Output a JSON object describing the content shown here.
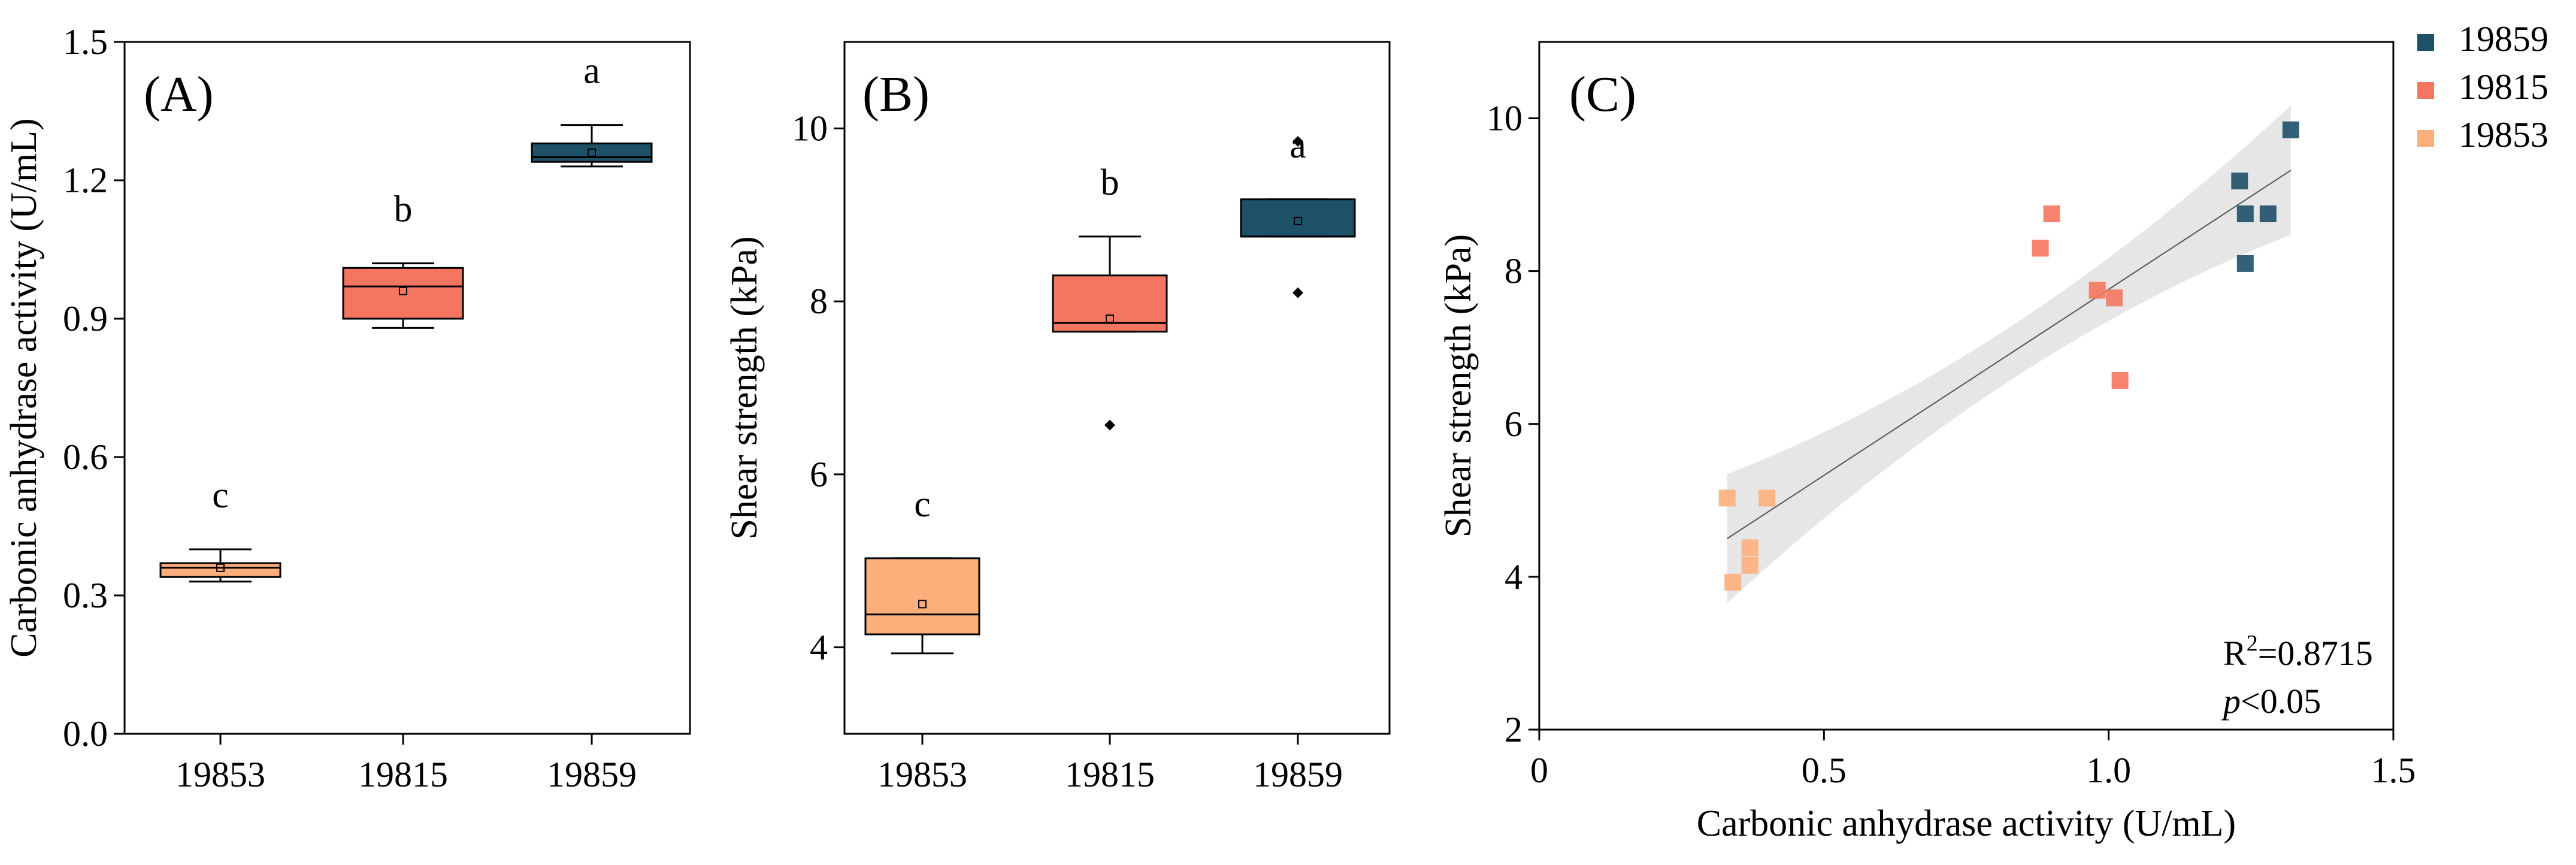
{
  "chart_data": [
    {
      "panel": "(A)",
      "type": "box",
      "ylabel": "Carbonic anhydrase activity (U/mL)",
      "xlabel": "",
      "ylim": [
        0.0,
        1.5
      ],
      "yticks": [
        "0.0",
        "0.3",
        "0.6",
        "0.9",
        "1.2",
        "1.5"
      ],
      "categories": [
        "19853",
        "19815",
        "19859"
      ],
      "colors": [
        "#FDAF7B",
        "#F47660",
        "#1E5068"
      ],
      "boxes": [
        {
          "whisker_low": 0.33,
          "q1": 0.34,
          "median": 0.36,
          "q3": 0.37,
          "whisker_high": 0.4,
          "mean": 0.36,
          "outliers": [],
          "label": "c"
        },
        {
          "whisker_low": 0.88,
          "q1": 0.9,
          "median": 0.97,
          "q3": 1.01,
          "whisker_high": 1.02,
          "mean": 0.96,
          "outliers": [],
          "label": "b"
        },
        {
          "whisker_low": 1.23,
          "q1": 1.24,
          "median": 1.25,
          "q3": 1.28,
          "whisker_high": 1.32,
          "mean": 1.26,
          "outliers": [],
          "label": "a"
        }
      ]
    },
    {
      "panel": "(B)",
      "type": "box",
      "ylabel": "Shear strength (kPa)",
      "xlabel": "",
      "ylim": [
        3.0,
        11.0
      ],
      "yticks": [
        "4",
        "6",
        "8",
        "10"
      ],
      "categories": [
        "19853",
        "19815",
        "19859"
      ],
      "colors": [
        "#FDAF7B",
        "#F47660",
        "#1E5068"
      ],
      "boxes": [
        {
          "whisker_low": 3.93,
          "q1": 4.15,
          "median": 4.38,
          "q3": 5.03,
          "whisker_high": 5.03,
          "mean": 4.5,
          "outliers": [],
          "label": "c"
        },
        {
          "whisker_low": 7.65,
          "q1": 7.65,
          "median": 7.75,
          "q3": 8.3,
          "whisker_high": 8.75,
          "mean": 7.8,
          "outliers": [
            6.57
          ],
          "label": "b"
        },
        {
          "whisker_low": 8.75,
          "q1": 8.75,
          "median": 8.75,
          "q3": 9.18,
          "whisker_high": 9.18,
          "mean": 8.93,
          "outliers": [
            8.1,
            9.85
          ],
          "label": "a"
        }
      ]
    },
    {
      "panel": "(C)",
      "type": "scatter",
      "xlabel": "Carbonic anhydrase activity (U/mL)",
      "ylabel": "Shear strength (kPa)",
      "xlim": [
        0.0,
        1.5
      ],
      "ylim": [
        2.0,
        11.0
      ],
      "xticks": [
        "0",
        "0.5",
        "1.0",
        "1.5"
      ],
      "yticks": [
        "2",
        "4",
        "6",
        "8",
        "10"
      ],
      "series": [
        {
          "name": "19859",
          "color": "#1E5068",
          "points": [
            [
              1.32,
              9.85
            ],
            [
              1.23,
              9.18
            ],
            [
              1.24,
              8.75
            ],
            [
              1.28,
              8.75
            ],
            [
              1.24,
              8.1
            ]
          ]
        },
        {
          "name": "19815",
          "color": "#F47660",
          "points": [
            [
              0.9,
              8.75
            ],
            [
              0.88,
              8.3
            ],
            [
              0.98,
              7.75
            ],
            [
              1.01,
              7.65
            ],
            [
              1.02,
              6.57
            ]
          ]
        },
        {
          "name": "19853",
          "color": "#FDAF7B",
          "points": [
            [
              0.33,
              5.03
            ],
            [
              0.4,
              5.03
            ],
            [
              0.37,
              4.38
            ],
            [
              0.37,
              4.15
            ],
            [
              0.34,
              3.93
            ]
          ]
        }
      ],
      "fit": {
        "x": [
          0.33,
          1.32
        ],
        "y": [
          4.5,
          9.32
        ]
      },
      "annotation": {
        "r2_prefix": "R",
        "r2_sup": "2",
        "r2_value": "=0.8715",
        "p_italic": "p",
        "p_rest": "<0.05"
      }
    }
  ]
}
